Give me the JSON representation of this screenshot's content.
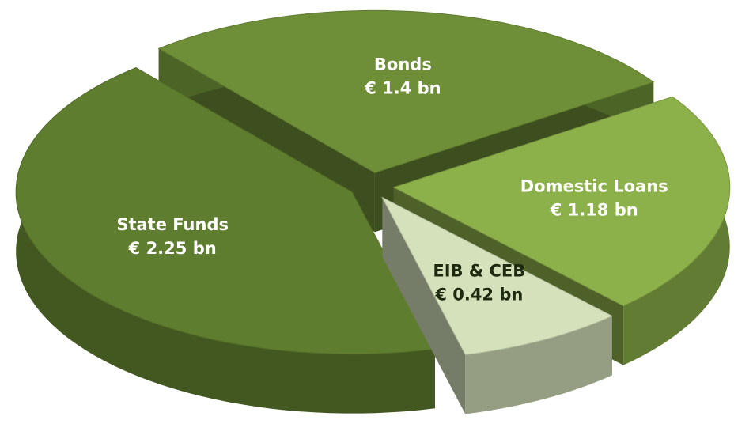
{
  "chart_data": {
    "type": "pie",
    "categories": [
      "Bonds",
      "Domestic Loans",
      "EIB & CEB",
      "State Funds"
    ],
    "values": [
      1.4,
      1.18,
      0.42,
      2.25
    ],
    "value_labels": [
      "€ 1.4 bn",
      "€ 1.18 bn",
      "€ 0.42 bn",
      "€ 2.25 bn"
    ],
    "colors": [
      "#6e8f37",
      "#8db14a",
      "#d5e1bb",
      "#5f7d2e"
    ]
  }
}
